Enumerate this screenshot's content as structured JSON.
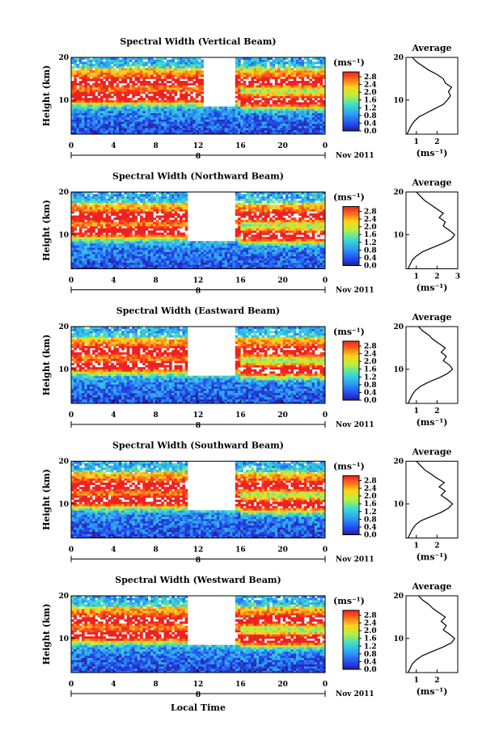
{
  "figure": {
    "type": "radar-spectral-width-time-height",
    "xlabel": "Local Time",
    "date_label": "Nov 2011",
    "day_marker": "8"
  },
  "chart_data": [
    {
      "type": "heatmap",
      "title": "Spectral Width (Vertical Beam)",
      "ylabel": "Height (km)",
      "x_ticks": [
        "0",
        "4",
        "8",
        "12",
        "16",
        "20",
        "0"
      ],
      "y_ticks": [
        "10",
        "20"
      ],
      "xlim": [
        0,
        24
      ],
      "ylim": [
        2,
        20
      ],
      "colorbar": {
        "unit": "(ms⁻¹)",
        "ticks": [
          "0.0",
          "0.4",
          "0.8",
          "1.2",
          "1.6",
          "2.0",
          "2.4",
          "2.8"
        ]
      },
      "gap": [
        12.5,
        15.5
      ],
      "profile": {
        "title": "Average",
        "xlabel": "(ms⁻¹)",
        "x_ticks": [
          "1",
          "2"
        ],
        "y_ticks": [
          "10",
          "20"
        ],
        "xlim": [
          0.5,
          3
        ],
        "heights": [
          2,
          3,
          4,
          5,
          6,
          7,
          8,
          9,
          10,
          11,
          12,
          13,
          14,
          15,
          16,
          17,
          18,
          19,
          20
        ],
        "values": [
          0.55,
          0.65,
          0.75,
          0.9,
          1.1,
          1.5,
          1.9,
          2.3,
          2.5,
          2.65,
          2.55,
          2.7,
          2.4,
          2.3,
          2.0,
          1.6,
          1.3,
          1.0,
          0.8
        ]
      }
    },
    {
      "type": "heatmap",
      "title": "Spectral Width (Northward Beam)",
      "ylabel": "Height (km)",
      "x_ticks": [
        "0",
        "4",
        "8",
        "12",
        "16",
        "20",
        "0"
      ],
      "y_ticks": [
        "10",
        "20"
      ],
      "xlim": [
        0,
        24
      ],
      "ylim": [
        2,
        20
      ],
      "colorbar": {
        "unit": "(ms⁻¹)",
        "ticks": [
          "0.0",
          "0.4",
          "0.8",
          "1.2",
          "1.6",
          "2.0",
          "2.4",
          "2.8"
        ]
      },
      "gap": [
        11,
        15.5
      ],
      "profile": {
        "title": "Average",
        "xlabel": "(ms⁻¹)",
        "x_ticks": [
          "1",
          "2",
          "3"
        ],
        "y_ticks": [
          "10",
          "20"
        ],
        "xlim": [
          0.5,
          3
        ],
        "heights": [
          2,
          3,
          4,
          5,
          6,
          7,
          8,
          9,
          10,
          11,
          12,
          13,
          14,
          15,
          16,
          17,
          18,
          19,
          20
        ],
        "values": [
          0.6,
          0.7,
          0.8,
          1.0,
          1.3,
          1.8,
          2.3,
          2.7,
          2.85,
          2.6,
          2.3,
          2.4,
          2.1,
          2.3,
          2.0,
          1.7,
          1.4,
          1.2,
          1.0
        ]
      }
    },
    {
      "type": "heatmap",
      "title": "Spectral Width (Eastward Beam)",
      "ylabel": "Height (km)",
      "x_ticks": [
        "0",
        "4",
        "8",
        "12",
        "16",
        "20",
        "0"
      ],
      "y_ticks": [
        "10",
        "20"
      ],
      "xlim": [
        0,
        24
      ],
      "ylim": [
        2,
        20
      ],
      "colorbar": {
        "unit": "(ms⁻¹)",
        "ticks": [
          "0.0",
          "0.4",
          "0.8",
          "1.2",
          "1.6",
          "2.0",
          "2.4",
          "2.8"
        ]
      },
      "gap": [
        11,
        15.5
      ],
      "profile": {
        "title": "Average",
        "xlabel": "(ms⁻¹)",
        "x_ticks": [
          "1",
          "2"
        ],
        "y_ticks": [
          "10",
          "20"
        ],
        "xlim": [
          0.5,
          3
        ],
        "heights": [
          2,
          3,
          4,
          5,
          6,
          7,
          8,
          9,
          10,
          11,
          12,
          13,
          14,
          15,
          16,
          17,
          18,
          19,
          20
        ],
        "values": [
          0.6,
          0.7,
          0.8,
          0.95,
          1.2,
          1.6,
          2.1,
          2.5,
          2.75,
          2.6,
          2.3,
          2.45,
          2.2,
          2.4,
          2.1,
          1.8,
          1.6,
          1.3,
          1.1
        ]
      }
    },
    {
      "type": "heatmap",
      "title": "Spectral Width (Southward Beam)",
      "ylabel": "Height (km)",
      "x_ticks": [
        "0",
        "4",
        "8",
        "12",
        "16",
        "20",
        "0"
      ],
      "y_ticks": [
        "10",
        "20"
      ],
      "xlim": [
        0,
        24
      ],
      "ylim": [
        2,
        20
      ],
      "colorbar": {
        "unit": "(ms⁻¹)",
        "ticks": [
          "0.0",
          "0.4",
          "0.8",
          "1.2",
          "1.6",
          "2.0",
          "2.4",
          "2.8"
        ]
      },
      "gap": [
        11,
        15.5
      ],
      "profile": {
        "title": "Average",
        "xlabel": "(ms⁻¹)",
        "x_ticks": [
          "1",
          "2"
        ],
        "y_ticks": [
          "10",
          "20"
        ],
        "xlim": [
          0.5,
          3
        ],
        "heights": [
          2,
          3,
          4,
          5,
          6,
          7,
          8,
          9,
          10,
          11,
          12,
          13,
          14,
          15,
          16,
          17,
          18,
          19,
          20
        ],
        "values": [
          0.6,
          0.7,
          0.8,
          0.95,
          1.2,
          1.7,
          2.2,
          2.55,
          2.75,
          2.5,
          2.2,
          2.4,
          2.1,
          2.35,
          2.0,
          1.7,
          1.4,
          1.2,
          1.0
        ]
      }
    },
    {
      "type": "heatmap",
      "title": "Spectral Width (Westward Beam)",
      "ylabel": "Height (km)",
      "x_ticks": [
        "0",
        "4",
        "8",
        "12",
        "16",
        "20",
        "0"
      ],
      "y_ticks": [
        "10",
        "20"
      ],
      "xlim": [
        0,
        24
      ],
      "ylim": [
        2,
        20
      ],
      "colorbar": {
        "unit": "(ms⁻¹)",
        "ticks": [
          "0.0",
          "0.4",
          "0.8",
          "1.2",
          "1.6",
          "2.0",
          "2.4",
          "2.8"
        ]
      },
      "gap": [
        11,
        15.5
      ],
      "profile": {
        "title": "Average",
        "xlabel": "(ms⁻¹)",
        "x_ticks": [
          "1",
          "2"
        ],
        "y_ticks": [
          "10",
          "20"
        ],
        "xlim": [
          0.5,
          3
        ],
        "heights": [
          2,
          3,
          4,
          5,
          6,
          7,
          8,
          9,
          10,
          11,
          12,
          13,
          14,
          15,
          16,
          17,
          18,
          19,
          20
        ],
        "values": [
          0.6,
          0.7,
          0.8,
          1.0,
          1.3,
          1.8,
          2.3,
          2.7,
          2.85,
          2.6,
          2.3,
          2.45,
          2.2,
          2.4,
          2.1,
          1.8,
          1.6,
          1.3,
          1.1
        ]
      }
    }
  ]
}
